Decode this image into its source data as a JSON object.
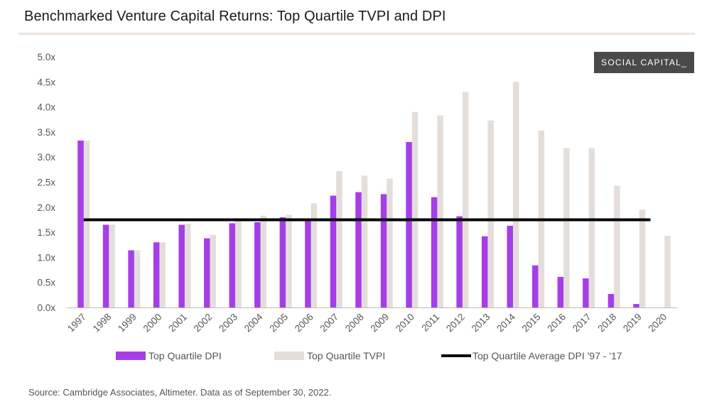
{
  "header": {
    "title": "Benchmarked Venture Capital Returns: Top Quartile TVPI and DPI",
    "brand": "SOCIAL CAPITAL_"
  },
  "footer": {
    "source": "Source: Cambridge Associates, Altimeter. Data as of September 30, 2022."
  },
  "colors": {
    "dpi": "#a63ee8",
    "tvpi": "#e4dedb",
    "average": "#000000",
    "axis": "#bbbbbb"
  },
  "chart_data": {
    "type": "bar",
    "title": "Benchmarked Venture Capital Returns: Top Quartile TVPI and DPI",
    "xlabel": "",
    "ylabel": "",
    "ylim": [
      0,
      5
    ],
    "y_ticks": [
      "0.0x",
      "0.5x",
      "1.0x",
      "1.5x",
      "2.0x",
      "2.5x",
      "3.0x",
      "3.5x",
      "4.0x",
      "4.5x",
      "5.0x"
    ],
    "categories": [
      "1997",
      "1998",
      "1999",
      "2000",
      "2001",
      "2002",
      "2003",
      "2004",
      "2005",
      "2006",
      "2007",
      "2008",
      "2009",
      "2010",
      "2011",
      "2012",
      "2013",
      "2014",
      "2015",
      "2016",
      "2017",
      "2018",
      "2019",
      "2020"
    ],
    "series": [
      {
        "name": "Top Quartile DPI",
        "values": [
          3.33,
          1.65,
          1.14,
          1.3,
          1.65,
          1.38,
          1.68,
          1.7,
          1.8,
          1.75,
          2.23,
          2.3,
          2.26,
          3.3,
          2.2,
          1.82,
          1.42,
          1.63,
          0.84,
          0.61,
          0.58,
          0.27,
          0.07,
          0.0
        ]
      },
      {
        "name": "Top Quartile TVPI",
        "values": [
          3.33,
          1.65,
          1.14,
          1.3,
          1.67,
          1.45,
          1.78,
          1.83,
          1.85,
          2.08,
          2.72,
          2.63,
          2.57,
          3.9,
          3.83,
          4.3,
          3.73,
          4.5,
          3.53,
          3.18,
          3.18,
          2.43,
          1.95,
          1.43
        ]
      },
      {
        "name": "Top Quartile Average DPI '97 - '17",
        "type": "line",
        "value": 1.75
      }
    ],
    "legend": {
      "position": "bottom",
      "items": [
        "Top Quartile DPI",
        "Top Quartile TVPI",
        "Top Quartile Average DPI '97 - '17"
      ]
    },
    "grid": false
  }
}
